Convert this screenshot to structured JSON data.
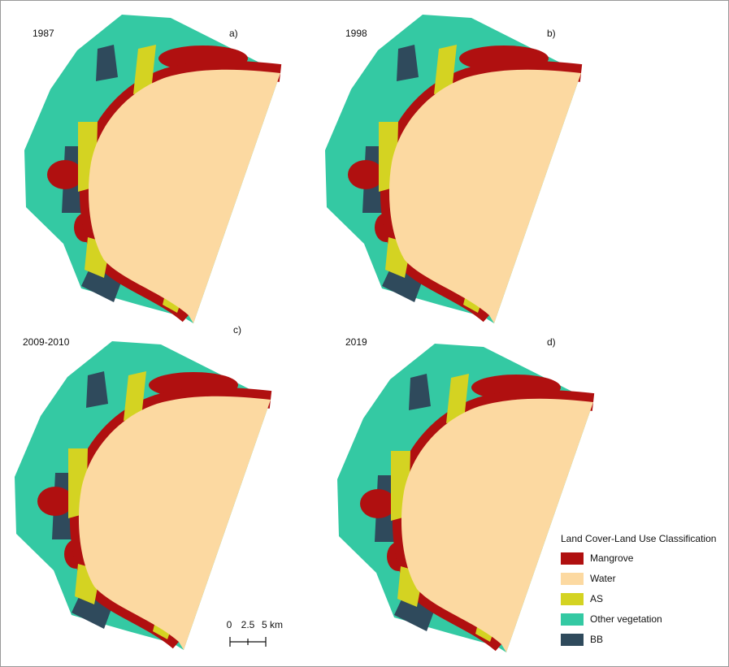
{
  "panels": [
    {
      "year": "1987",
      "letter": "a)"
    },
    {
      "year": "1998",
      "letter": "b)"
    },
    {
      "year": "2009-2010",
      "letter": "c)"
    },
    {
      "year": "2019",
      "letter": "d)"
    }
  ],
  "legend": {
    "title": "Land Cover-Land Use Classification",
    "items": [
      {
        "label": "Mangrove",
        "color": "#b01010"
      },
      {
        "label": "Water",
        "color": "#fcd9a1"
      },
      {
        "label": "AS",
        "color": "#d4d322"
      },
      {
        "label": "Other vegetation",
        "color": "#34c9a3"
      },
      {
        "label": "BB",
        "color": "#2f4a5c"
      }
    ]
  },
  "scale_bar": {
    "labels": [
      "0",
      "2.5",
      "5 km"
    ]
  }
}
